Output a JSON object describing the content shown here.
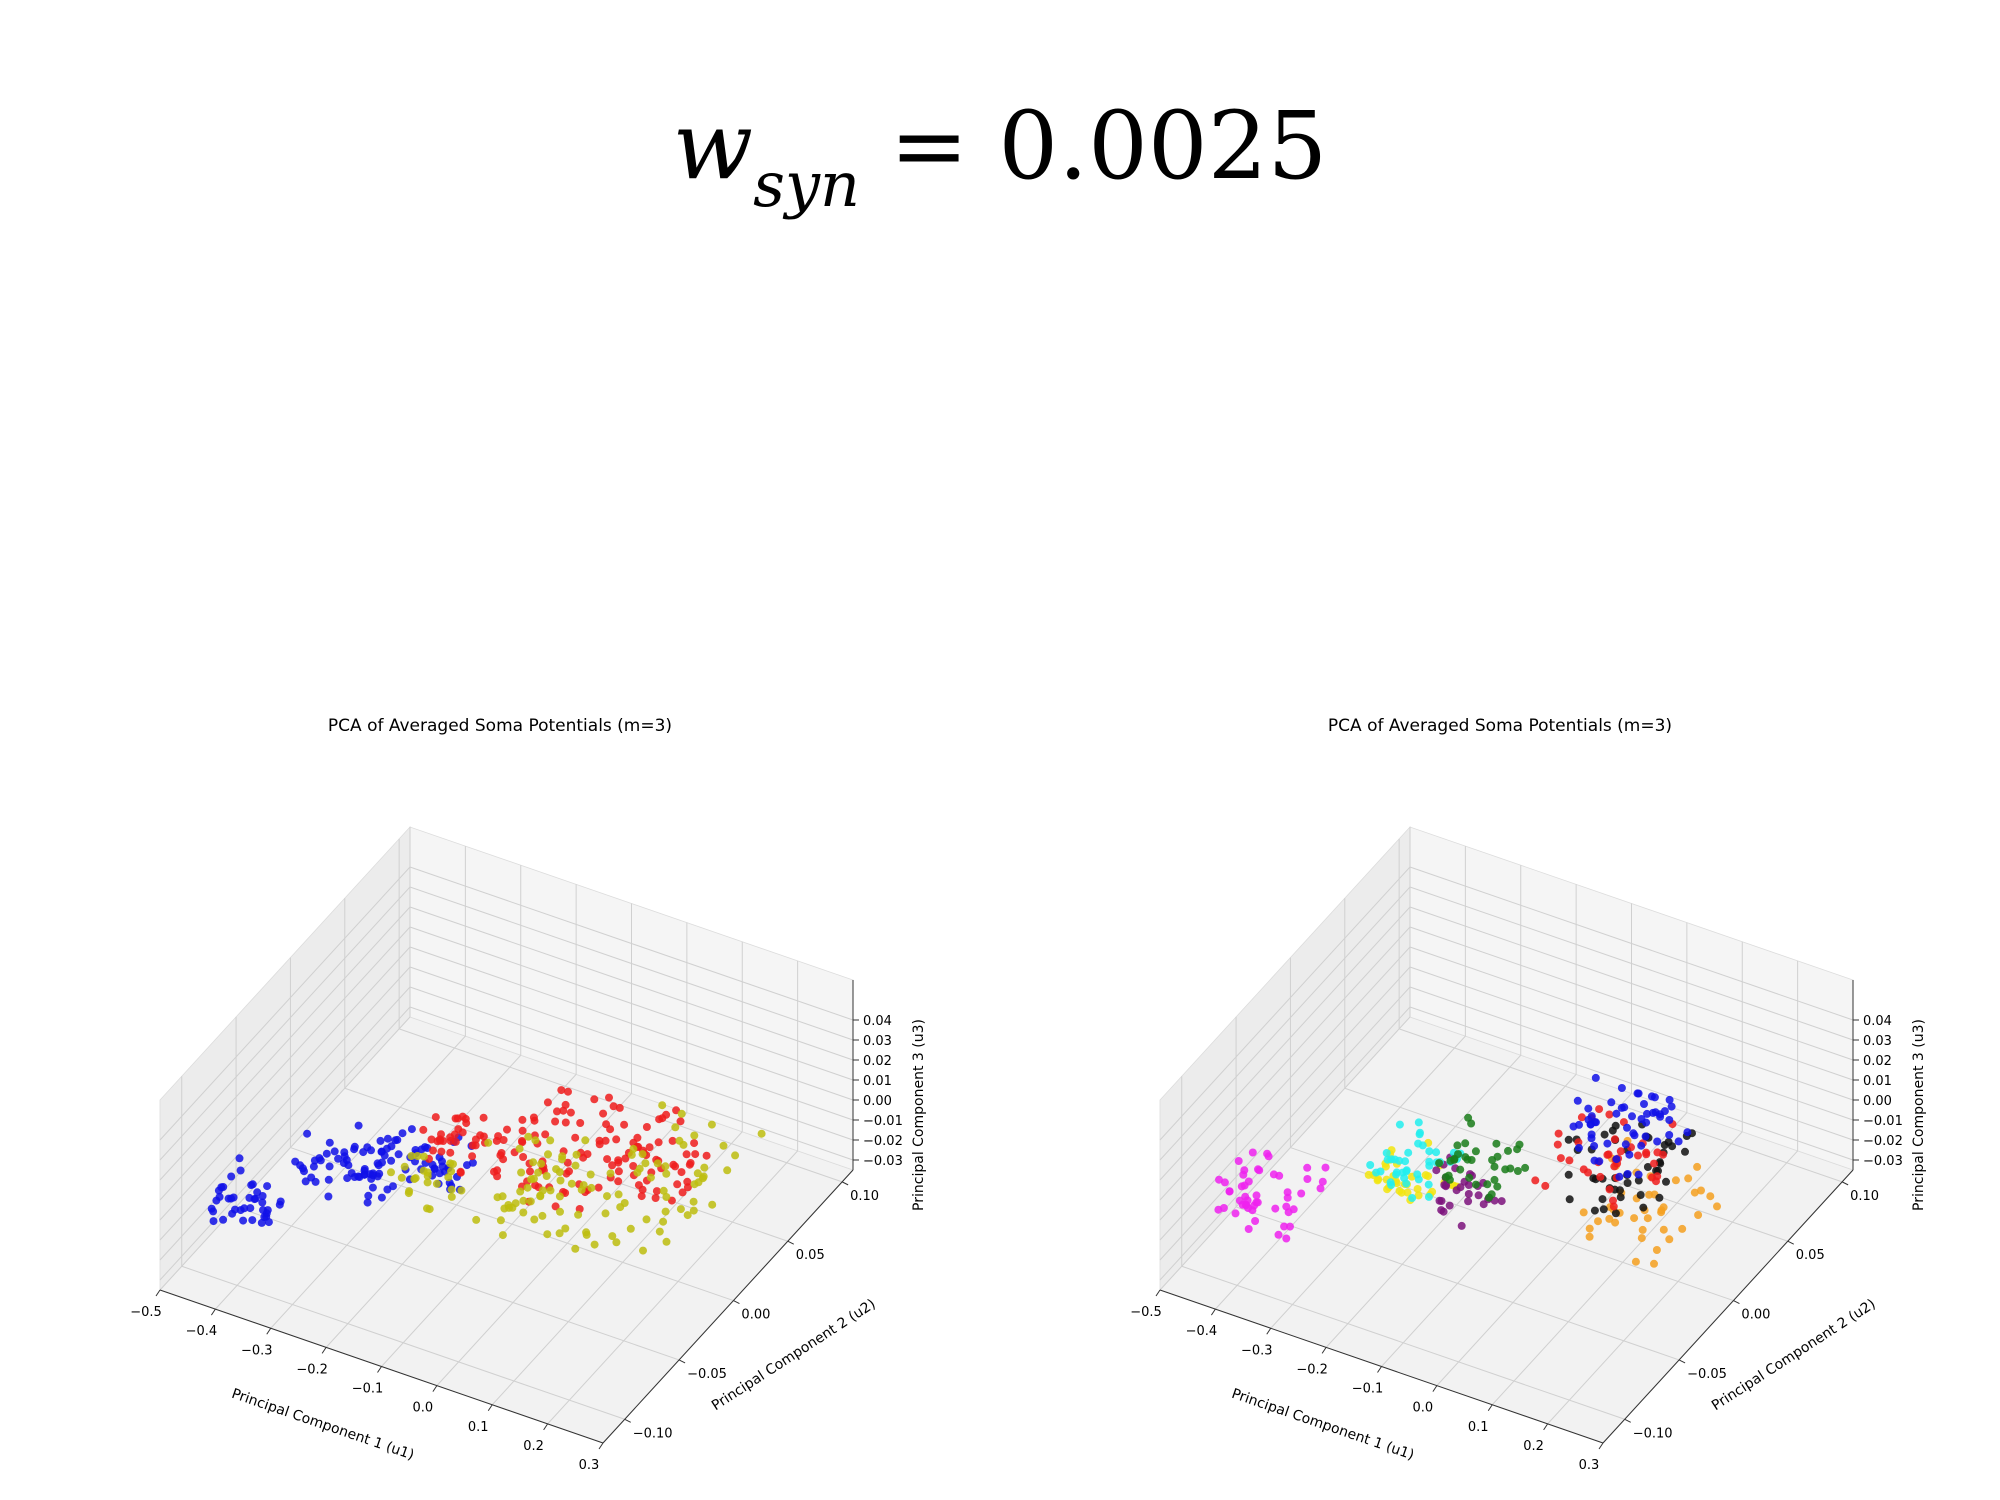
{
  "figure_title": {
    "symbol": "w",
    "subscript": "syn",
    "rest": " = 0.0025"
  },
  "chart_data": [
    {
      "type": "scatter",
      "title": "PCA of Averaged Soma Potentials (m=3)",
      "xlabel": "Principal Component 1 (u1)",
      "ylabel": "Principal Component 2 (u2)",
      "zlabel": "Principal Component 3 (u3)",
      "xlim": [
        -0.5,
        0.3
      ],
      "ylim": [
        -0.12,
        0.11
      ],
      "zlim": [
        -0.035,
        0.06
      ],
      "xticks": [
        "−0.5",
        "−0.4",
        "−0.3",
        "−0.2",
        "−0.1",
        "0.0",
        "0.1",
        "0.2",
        "0.3"
      ],
      "yticks": [
        "−0.10",
        "−0.05",
        "0.00",
        "0.05",
        "0.10"
      ],
      "zticks": [
        "−0.03",
        "−0.02",
        "−0.01",
        "0.00",
        "0.01",
        "0.02",
        "0.03",
        "0.04"
      ],
      "grid": true,
      "series": [
        {
          "color": "#1010e8",
          "clusters": [
            {
              "x": [
                -0.45,
                -0.35
              ],
              "y": [
                -0.105,
                -0.075
              ],
              "z": [
                -0.01,
                0.01
              ],
              "n": 40
            },
            {
              "x": [
                -0.38,
                -0.22
              ],
              "y": [
                -0.07,
                -0.03
              ],
              "z": [
                -0.005,
                0.012
              ],
              "n": 55
            },
            {
              "x": [
                -0.3,
                -0.15
              ],
              "y": [
                -0.03,
                -0.005
              ],
              "z": [
                -0.012,
                0.005
              ],
              "n": 45
            }
          ]
        },
        {
          "color": "#ee1c1c",
          "clusters": [
            {
              "x": [
                -0.26,
                -0.12
              ],
              "y": [
                -0.01,
                0.02
              ],
              "z": [
                -0.015,
                0.003
              ],
              "n": 40
            },
            {
              "x": [
                -0.15,
                0.02
              ],
              "y": [
                0.0,
                0.07
              ],
              "z": [
                -0.03,
                -0.005
              ],
              "n": 70
            },
            {
              "x": [
                0.0,
                0.12
              ],
              "y": [
                0.03,
                0.08
              ],
              "z": [
                -0.028,
                -0.01
              ],
              "n": 45
            }
          ]
        },
        {
          "color": "#bdbd0e",
          "clusters": [
            {
              "x": [
                -0.22,
                -0.1
              ],
              "y": [
                -0.06,
                -0.02
              ],
              "z": [
                0.002,
                0.018
              ],
              "n": 25
            },
            {
              "x": [
                -0.1,
                0.08
              ],
              "y": [
                -0.04,
                0.02
              ],
              "z": [
                -0.012,
                0.008
              ],
              "n": 55
            },
            {
              "x": [
                0.05,
                0.22
              ],
              "y": [
                -0.02,
                0.08
              ],
              "z": [
                -0.02,
                0.005
              ],
              "n": 50
            }
          ]
        }
      ]
    },
    {
      "type": "scatter",
      "title": "PCA of Averaged Soma Potentials (m=3)",
      "xlabel": "Principal Component 1 (u1)",
      "ylabel": "Principal Component 2 (u2)",
      "zlabel": "Principal Component 3 (u3)",
      "xlim": [
        -0.5,
        0.3
      ],
      "ylim": [
        -0.12,
        0.11
      ],
      "zlim": [
        -0.035,
        0.06
      ],
      "xticks": [
        "−0.5",
        "−0.4",
        "−0.3",
        "−0.2",
        "−0.1",
        "0.0",
        "0.1",
        "0.2",
        "0.3"
      ],
      "yticks": [
        "−0.10",
        "−0.05",
        "0.00",
        "0.05",
        "0.10"
      ],
      "zticks": [
        "−0.03",
        "−0.02",
        "−0.01",
        "0.00",
        "0.01",
        "0.02",
        "0.03",
        "0.04"
      ],
      "grid": true,
      "series": [
        {
          "color": "#ee22ee",
          "clusters": [
            {
              "x": [
                -0.45,
                -0.3
              ],
              "y": [
                -0.105,
                -0.06
              ],
              "z": [
                -0.008,
                0.012
              ],
              "n": 50
            }
          ]
        },
        {
          "color": "#f2e50f",
          "clusters": [
            {
              "x": [
                -0.25,
                -0.12
              ],
              "y": [
                -0.06,
                -0.03
              ],
              "z": [
                0.0,
                0.016
              ],
              "n": 35
            }
          ]
        },
        {
          "color": "#7d137d",
          "clusters": [
            {
              "x": [
                -0.15,
                -0.02
              ],
              "y": [
                -0.06,
                -0.03
              ],
              "z": [
                0.0,
                0.018
              ],
              "n": 30
            }
          ]
        },
        {
          "color": "#22eeee",
          "clusters": [
            {
              "x": [
                -0.3,
                -0.18
              ],
              "y": [
                -0.04,
                0.0
              ],
              "z": [
                -0.012,
                0.004
              ],
              "n": 40
            }
          ]
        },
        {
          "color": "#1a7d1a",
          "clusters": [
            {
              "x": [
                -0.22,
                -0.1
              ],
              "y": [
                -0.015,
                0.02
              ],
              "z": [
                -0.018,
                0.0
              ],
              "n": 35
            }
          ]
        },
        {
          "color": "#f4a020",
          "clusters": [
            {
              "x": [
                0.04,
                0.22
              ],
              "y": [
                -0.03,
                0.03
              ],
              "z": [
                -0.015,
                0.008
              ],
              "n": 40
            }
          ]
        },
        {
          "color": "#111111",
          "clusters": [
            {
              "x": [
                -0.05,
                0.12
              ],
              "y": [
                0.0,
                0.06
              ],
              "z": [
                -0.02,
                0.0
              ],
              "n": 45
            }
          ]
        },
        {
          "color": "#ee1c1c",
          "clusters": [
            {
              "x": [
                -0.1,
                0.08
              ],
              "y": [
                0.02,
                0.07
              ],
              "z": [
                -0.03,
                -0.01
              ],
              "n": 40
            }
          ]
        },
        {
          "color": "#1010e8",
          "clusters": [
            {
              "x": [
                -0.12,
                0.05
              ],
              "y": [
                0.04,
                0.095
              ],
              "z": [
                -0.03,
                -0.012
              ],
              "n": 55
            }
          ]
        }
      ]
    }
  ]
}
